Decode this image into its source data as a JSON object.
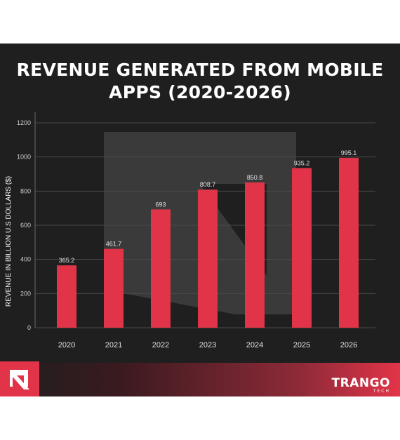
{
  "chart_data": {
    "type": "bar",
    "title_line1": "REVENUE GENERATED FROM MOBILE",
    "title_line2": "APPS (2020-2026)",
    "xlabel": "",
    "ylabel": "REVENUE IN BILLION U.S DOLLARS ($)",
    "categories": [
      "2020",
      "2021",
      "2022",
      "2023",
      "2024",
      "2025",
      "2026"
    ],
    "values": [
      365.2,
      461.7,
      693,
      808.7,
      850.8,
      935.2,
      995.1
    ],
    "value_labels": [
      "365.2",
      "461.7",
      "693",
      "808.7",
      "850.8",
      "935.2",
      "995.1"
    ],
    "y_ticks": [
      0,
      200,
      400,
      600,
      800,
      1000,
      1200
    ],
    "ylim": [
      0,
      1200
    ],
    "grid": true,
    "bar_color": "#e23448"
  },
  "brand": {
    "name": "TRANGO",
    "sub": "TECH",
    "accent_color": "#e23448",
    "logo_icon": "arrow-logo-icon"
  }
}
